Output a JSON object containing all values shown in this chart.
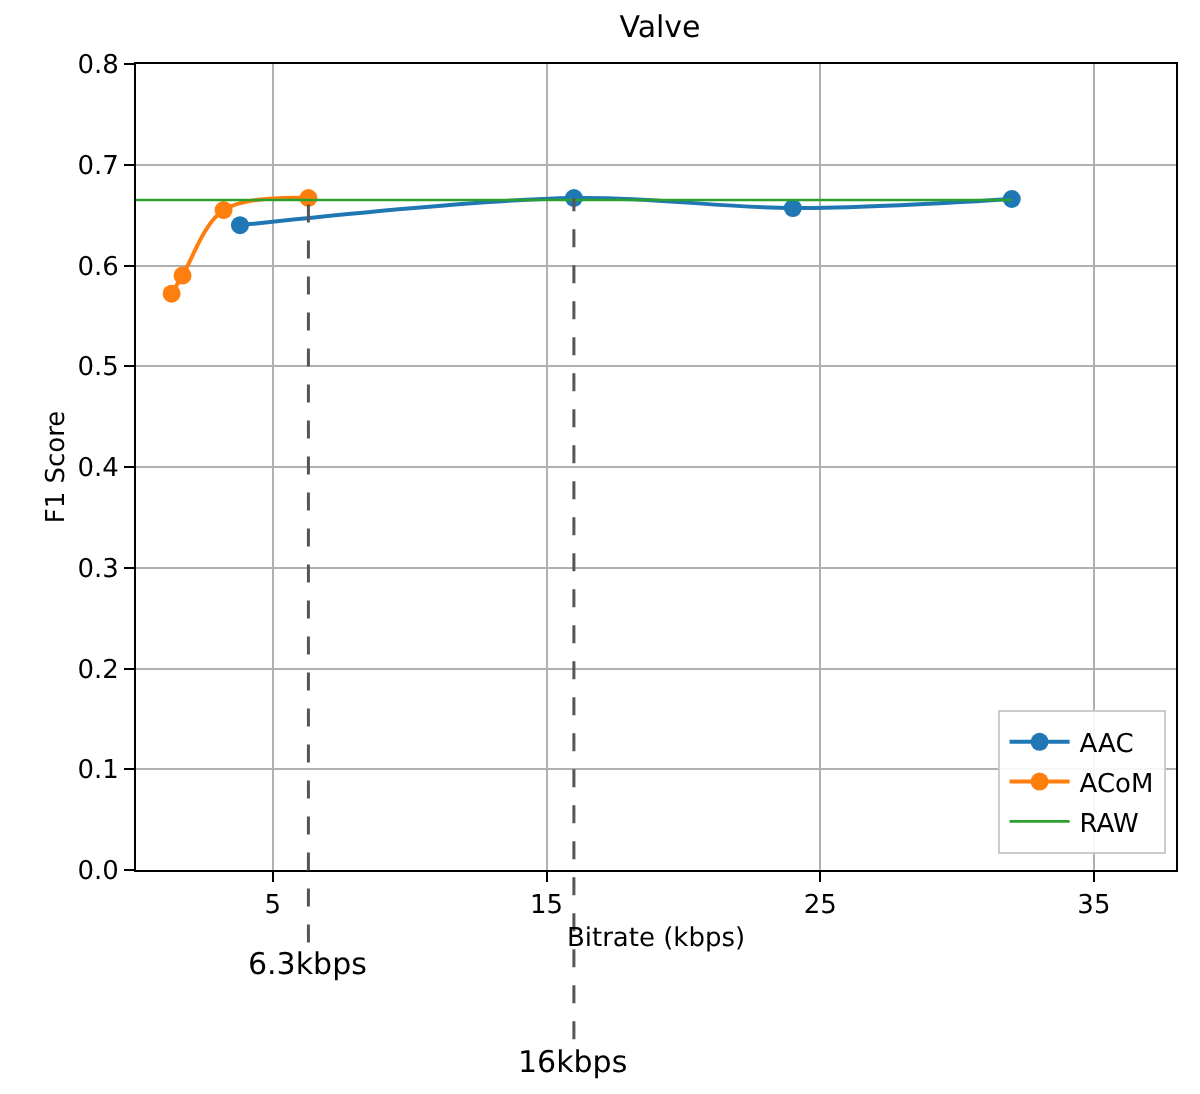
{
  "chart_data": {
    "type": "line",
    "title": "Valve",
    "xlabel": "Bitrate (kbps)",
    "ylabel": "F1 Score",
    "xlim": [
      0,
      38
    ],
    "xticks": [
      5,
      15,
      25,
      35
    ],
    "ylim": [
      0,
      0.8
    ],
    "yticks": [
      {
        "value": 0,
        "label": "0.0"
      },
      0.1,
      0.2,
      0.3,
      0.4,
      0.5,
      0.6,
      0.7,
      0.8
    ],
    "grid": true,
    "legend": "bottom right",
    "series": [
      {
        "name": "AAC",
        "color": "#1f77b4",
        "marker": "circle",
        "x": [
          3.8,
          16,
          24,
          32
        ],
        "values": [
          0.64,
          0.667,
          0.657,
          0.666
        ]
      },
      {
        "name": "ACoM",
        "color": "#ff7f0e",
        "marker": "circle",
        "x": [
          1.3,
          1.7,
          3.2,
          6.3
        ],
        "values": [
          0.572,
          0.59,
          0.655,
          0.667
        ]
      },
      {
        "name": "RAW",
        "color": "#2ca02c",
        "marker": "none",
        "x": [
          0,
          32
        ],
        "values": [
          0.665,
          0.665
        ]
      }
    ],
    "ref_lines": [
      {
        "axis": "x",
        "value": 6.3,
        "label": "6.3kbps",
        "color": "#555555",
        "line_style": "dashed"
      },
      {
        "axis": "x",
        "value": 16,
        "label": "16kbps",
        "color": "#555555",
        "line_style": "dashed"
      }
    ]
  }
}
